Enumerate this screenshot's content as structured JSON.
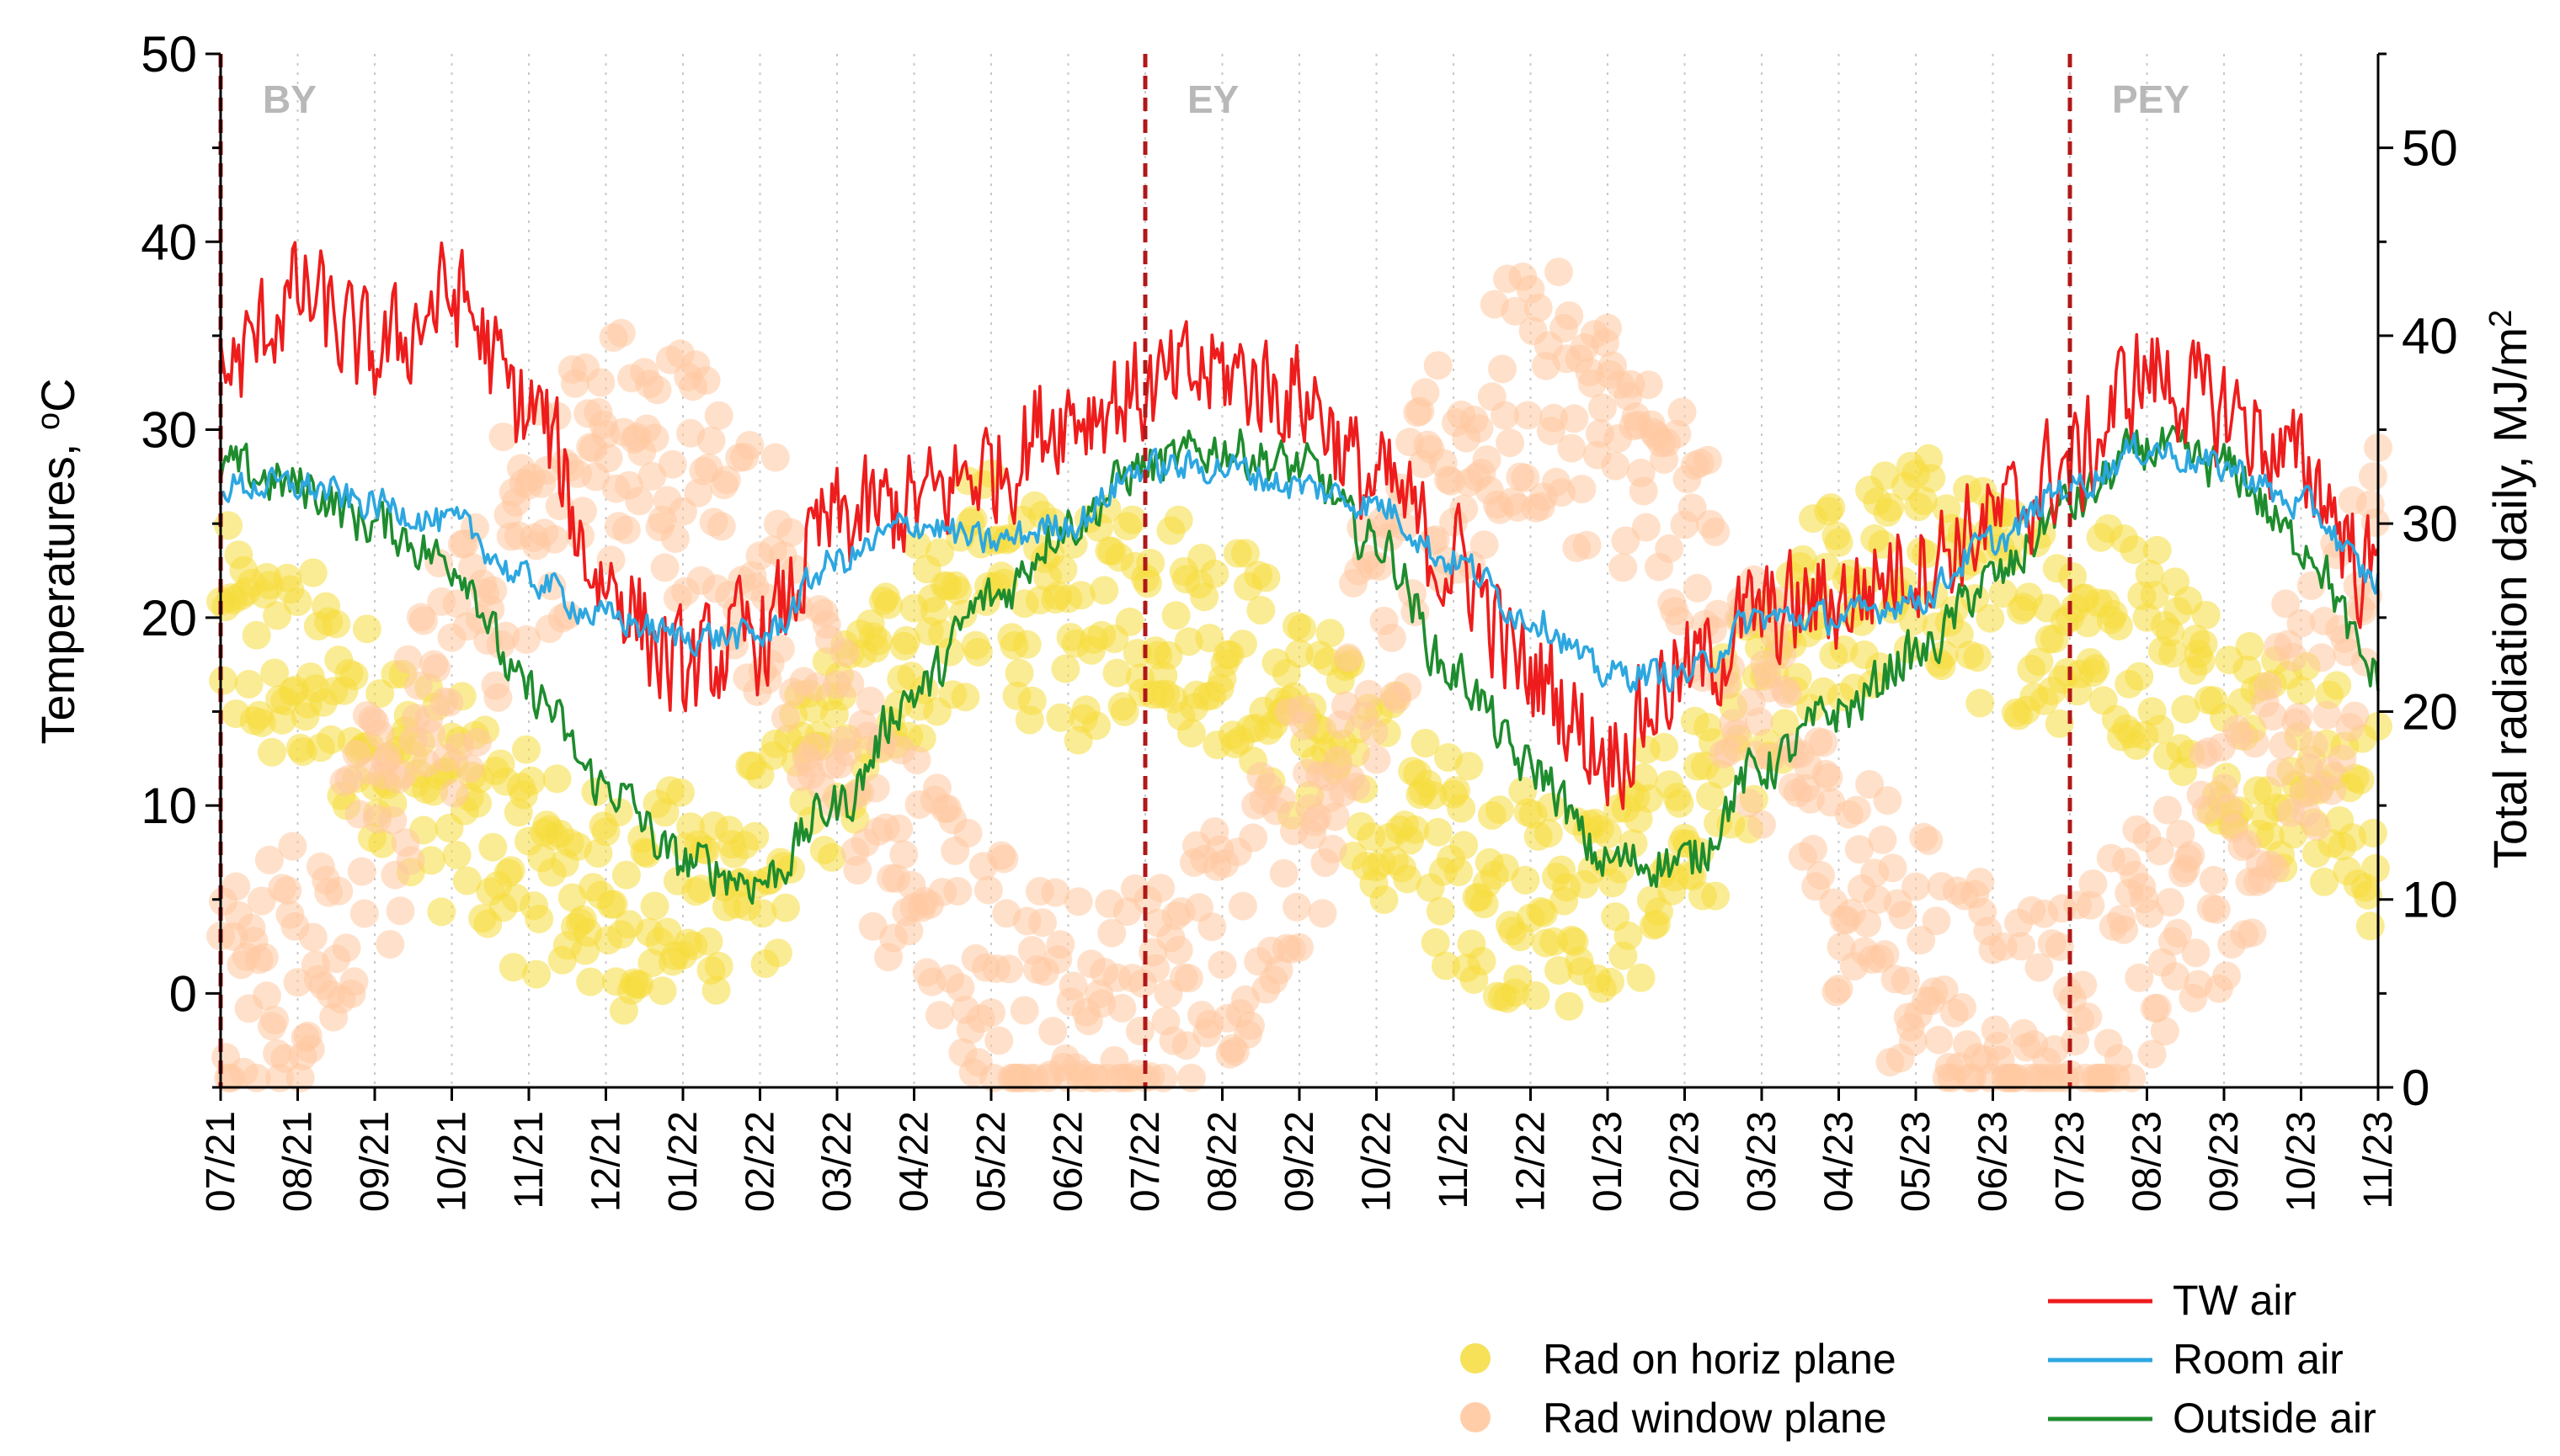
{
  "chart_data": {
    "type": "line",
    "title": "",
    "ylabel": "Temperatures, °C",
    "ylabel_parts": {
      "main": "Temperatures, ",
      "sup": "o",
      "unit": "C"
    },
    "y2label": "Total radiation daily, MJ/m²",
    "y2label_parts": {
      "main": "Total radiation daily, MJ/m",
      "sup": "2"
    },
    "ylim": [
      -5,
      50
    ],
    "y2lim": [
      0,
      55
    ],
    "yticks": [
      0,
      10,
      20,
      30,
      40,
      50
    ],
    "y2ticks": [
      0,
      10,
      20,
      30,
      40,
      50
    ],
    "x_months": [
      "07/21",
      "08/21",
      "09/21",
      "10/21",
      "11/21",
      "12/21",
      "01/22",
      "02/22",
      "03/22",
      "04/22",
      "05/22",
      "06/22",
      "07/22",
      "08/22",
      "09/22",
      "10/22",
      "11/22",
      "12/22",
      "01/23",
      "02/23",
      "03/23",
      "04/23",
      "05/23",
      "06/23",
      "07/23",
      "08/23",
      "09/23",
      "10/23",
      "11/23"
    ],
    "grid": "vertical dotted",
    "period_markers": [
      {
        "label": "BY",
        "month_index": 0
      },
      {
        "label": "EY",
        "month_index": 12
      },
      {
        "label": "PEY",
        "month_index": 24
      }
    ],
    "series": [
      {
        "name": "TW air",
        "axis": "left",
        "color": "#ee1c1c",
        "style": "line",
        "monthly_values": [
          33,
          37,
          34,
          37,
          31,
          22,
          17,
          19,
          25,
          26,
          28,
          31,
          32,
          33,
          32,
          27,
          23,
          17,
          13,
          17,
          20,
          21,
          23,
          25,
          28,
          33,
          31,
          28,
          22
        ],
        "daily_noise": 4.2
      },
      {
        "name": "Room air",
        "axis": "left",
        "color": "#2ca7e0",
        "style": "line",
        "monthly_values": [
          27,
          27,
          26,
          25,
          22,
          20,
          19,
          19,
          23,
          25,
          24,
          25,
          28,
          28,
          27,
          26,
          23,
          20,
          17,
          17,
          20,
          20,
          21,
          24,
          27,
          29,
          28,
          26,
          22
        ],
        "daily_noise": 1.2
      },
      {
        "name": "Outside air",
        "axis": "left",
        "color": "#1e8c2e",
        "style": "line",
        "monthly_values": [
          28,
          27,
          25,
          23,
          16,
          11,
          7,
          6,
          10,
          16,
          21,
          25,
          28,
          29,
          28,
          24,
          17,
          12,
          7,
          7,
          12,
          15,
          18,
          22,
          26,
          29,
          28,
          24,
          17
        ],
        "daily_noise": 1.8
      },
      {
        "name": "Rad on horiz plane",
        "axis": "right",
        "color": "#f5dc3c",
        "style": "scatter",
        "monthly_values": [
          24,
          22,
          19,
          15,
          12,
          10,
          10,
          12,
          18,
          24,
          27,
          24,
          26,
          24,
          20,
          16,
          12,
          10,
          10,
          14,
          20,
          26,
          28,
          26,
          25,
          24,
          20,
          17,
          14
        ],
        "daily_noise": 6
      },
      {
        "name": "Rad window plane",
        "axis": "right",
        "color": "#ffc9a0",
        "style": "scatter",
        "monthly_values": [
          4,
          7,
          13,
          22,
          30,
          34,
          33,
          28,
          18,
          11,
          6,
          4,
          4,
          8,
          14,
          24,
          33,
          37,
          35,
          29,
          20,
          12,
          7,
          4,
          4,
          7,
          12,
          20,
          28
        ],
        "daily_noise": 7
      }
    ],
    "legend": {
      "placement": "bottom-right",
      "entries": [
        "Rad on horiz plane",
        "Rad window plane",
        "TW air",
        "Room air",
        "Outside air"
      ]
    }
  }
}
